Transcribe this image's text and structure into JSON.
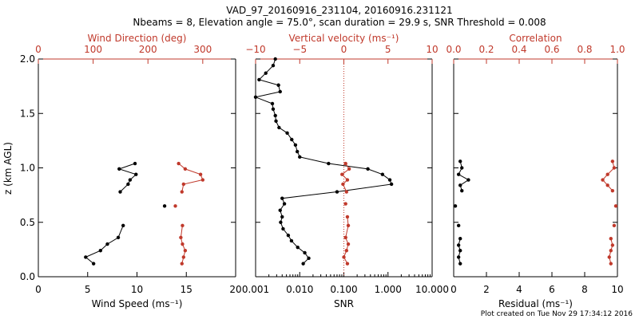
{
  "title": {
    "line1": "VAD_97_20160916_231104, 20160916.231121",
    "line2": "Nbeams = 8, Elevation angle = 75.0°, scan duration = 29.9 s, SNR Threshold = 0.008"
  },
  "footer": "Plot created on Tue Nov 29 17:34:12 2016",
  "colors": {
    "primary": "#000000",
    "secondary": "#c0392b"
  },
  "chart_data": [
    {
      "type": "line",
      "panel": "wind",
      "ylabel": "z (km AGL)",
      "ylim": [
        0,
        2
      ],
      "yticks": [
        "0.0",
        "0.5",
        "1.0",
        "1.5",
        "2.0"
      ],
      "bottom_axis": {
        "label": "Wind Speed (ms⁻¹)",
        "lim": [
          0,
          20
        ],
        "ticks": [
          "0",
          "5",
          "10",
          "15",
          "20"
        ]
      },
      "top_axis": {
        "label": "Wind Direction (deg)",
        "lim": [
          0,
          360
        ],
        "ticks": [
          "0",
          "100",
          "200",
          "300"
        ]
      },
      "series": [
        {
          "role": "wind_speed",
          "points": [
            [
              9.8,
              1.04
            ],
            [
              8.2,
              0.99
            ],
            [
              9.9,
              0.94
            ],
            [
              9.3,
              0.89
            ],
            [
              9.1,
              0.85
            ],
            [
              8.3,
              0.78
            ],
            [
              12.8,
              0.65
            ],
            [
              8.6,
              0.47
            ],
            [
              8.1,
              0.36
            ],
            [
              7.0,
              0.3
            ],
            [
              6.3,
              0.24
            ],
            [
              4.8,
              0.18
            ],
            [
              5.6,
              0.12
            ]
          ],
          "segments": [
            [
              0,
              5
            ],
            [
              7,
              12
            ]
          ]
        },
        {
          "role": "wind_direction",
          "points": [
            [
              256,
              1.04
            ],
            [
              268,
              0.99
            ],
            [
              296,
              0.94
            ],
            [
              300,
              0.89
            ],
            [
              265,
              0.85
            ],
            [
              262,
              0.78
            ],
            [
              250,
              0.65
            ],
            [
              263,
              0.47
            ],
            [
              260,
              0.36
            ],
            [
              263,
              0.3
            ],
            [
              268,
              0.24
            ],
            [
              265,
              0.18
            ],
            [
              262,
              0.12
            ]
          ],
          "segments": [
            [
              0,
              5
            ],
            [
              7,
              12
            ]
          ]
        }
      ]
    },
    {
      "type": "line",
      "panel": "snr",
      "ylim": [
        0,
        2
      ],
      "bottom_axis": {
        "label": "SNR",
        "scale": "log",
        "lim": [
          0.001,
          10
        ],
        "ticks": [
          "0.001",
          "0.010",
          "0.100",
          "1.000",
          "10.000"
        ]
      },
      "top_axis": {
        "label": "Vertical velocity (ms⁻¹)",
        "lim": [
          -10,
          10
        ],
        "ticks": [
          "−10",
          "−5",
          "0",
          "5",
          "10"
        ]
      },
      "reference_line": {
        "axis": "top",
        "value": 0,
        "style": "dotted"
      },
      "series": [
        {
          "role": "snr",
          "points": [
            [
              0.0028,
              2.0
            ],
            [
              0.0025,
              1.94
            ],
            [
              0.0017,
              1.87
            ],
            [
              0.0012,
              1.81
            ],
            [
              0.0033,
              1.76
            ],
            [
              0.0036,
              1.7
            ],
            [
              0.001,
              1.65
            ],
            [
              0.0024,
              1.59
            ],
            [
              0.0025,
              1.54
            ],
            [
              0.0028,
              1.48
            ],
            [
              0.0029,
              1.43
            ],
            [
              0.0034,
              1.37
            ],
            [
              0.0052,
              1.32
            ],
            [
              0.0066,
              1.26
            ],
            [
              0.008,
              1.21
            ],
            [
              0.0088,
              1.15
            ],
            [
              0.01,
              1.1
            ],
            [
              0.045,
              1.04
            ],
            [
              0.35,
              0.99
            ],
            [
              0.75,
              0.94
            ],
            [
              1.1,
              0.89
            ],
            [
              1.2,
              0.85
            ],
            [
              0.07,
              0.78
            ],
            [
              0.004,
              0.72
            ],
            [
              0.0045,
              0.67
            ],
            [
              0.0036,
              0.61
            ],
            [
              0.004,
              0.55
            ],
            [
              0.0037,
              0.5
            ],
            [
              0.0042,
              0.44
            ],
            [
              0.0055,
              0.38
            ],
            [
              0.0065,
              0.33
            ],
            [
              0.009,
              0.27
            ],
            [
              0.013,
              0.22
            ],
            [
              0.016,
              0.17
            ],
            [
              0.012,
              0.12
            ]
          ],
          "segments": [
            [
              0,
              34
            ]
          ]
        },
        {
          "role": "vertical_velocity",
          "points": [
            [
              0.2,
              1.04
            ],
            [
              0.6,
              0.99
            ],
            [
              -0.2,
              0.94
            ],
            [
              0.4,
              0.89
            ],
            [
              -0.1,
              0.85
            ],
            [
              0.3,
              0.78
            ],
            [
              0.2,
              0.67
            ],
            [
              0.4,
              0.55
            ],
            [
              0.5,
              0.47
            ],
            [
              0.2,
              0.36
            ],
            [
              0.5,
              0.3
            ],
            [
              0.3,
              0.24
            ],
            [
              0.0,
              0.18
            ],
            [
              0.4,
              0.12
            ]
          ],
          "segments": [
            [
              0,
              5
            ],
            [
              7,
              13
            ]
          ]
        }
      ]
    },
    {
      "type": "line",
      "panel": "residual",
      "ylim": [
        0,
        2
      ],
      "bottom_axis": {
        "label": "Residual (ms⁻¹)",
        "lim": [
          0,
          10
        ],
        "ticks": [
          "0",
          "2",
          "4",
          "6",
          "8",
          "10"
        ]
      },
      "top_axis": {
        "label": "Correlation",
        "lim": [
          0.0,
          1.0
        ],
        "ticks": [
          "0.0",
          "0.2",
          "0.4",
          "0.6",
          "0.8",
          "1.0"
        ]
      },
      "series": [
        {
          "role": "residual",
          "points": [
            [
              0.4,
              1.06
            ],
            [
              0.5,
              1.0
            ],
            [
              0.3,
              0.94
            ],
            [
              0.9,
              0.89
            ],
            [
              0.4,
              0.84
            ],
            [
              0.5,
              0.79
            ],
            [
              0.1,
              0.65
            ],
            [
              0.3,
              0.47
            ],
            [
              0.4,
              0.35
            ],
            [
              0.3,
              0.29
            ],
            [
              0.4,
              0.24
            ],
            [
              0.3,
              0.18
            ],
            [
              0.4,
              0.12
            ]
          ],
          "segments": [
            [
              0,
              5
            ],
            [
              8,
              12
            ]
          ]
        },
        {
          "role": "correlation",
          "points": [
            [
              0.97,
              1.06
            ],
            [
              0.98,
              1.0
            ],
            [
              0.94,
              0.94
            ],
            [
              0.91,
              0.89
            ],
            [
              0.94,
              0.84
            ],
            [
              0.97,
              0.79
            ],
            [
              0.99,
              0.65
            ],
            [
              0.98,
              0.47
            ],
            [
              0.96,
              0.35
            ],
            [
              0.97,
              0.29
            ],
            [
              0.96,
              0.24
            ],
            [
              0.95,
              0.18
            ],
            [
              0.96,
              0.12
            ]
          ],
          "segments": [
            [
              0,
              5
            ],
            [
              8,
              12
            ]
          ]
        }
      ]
    }
  ]
}
